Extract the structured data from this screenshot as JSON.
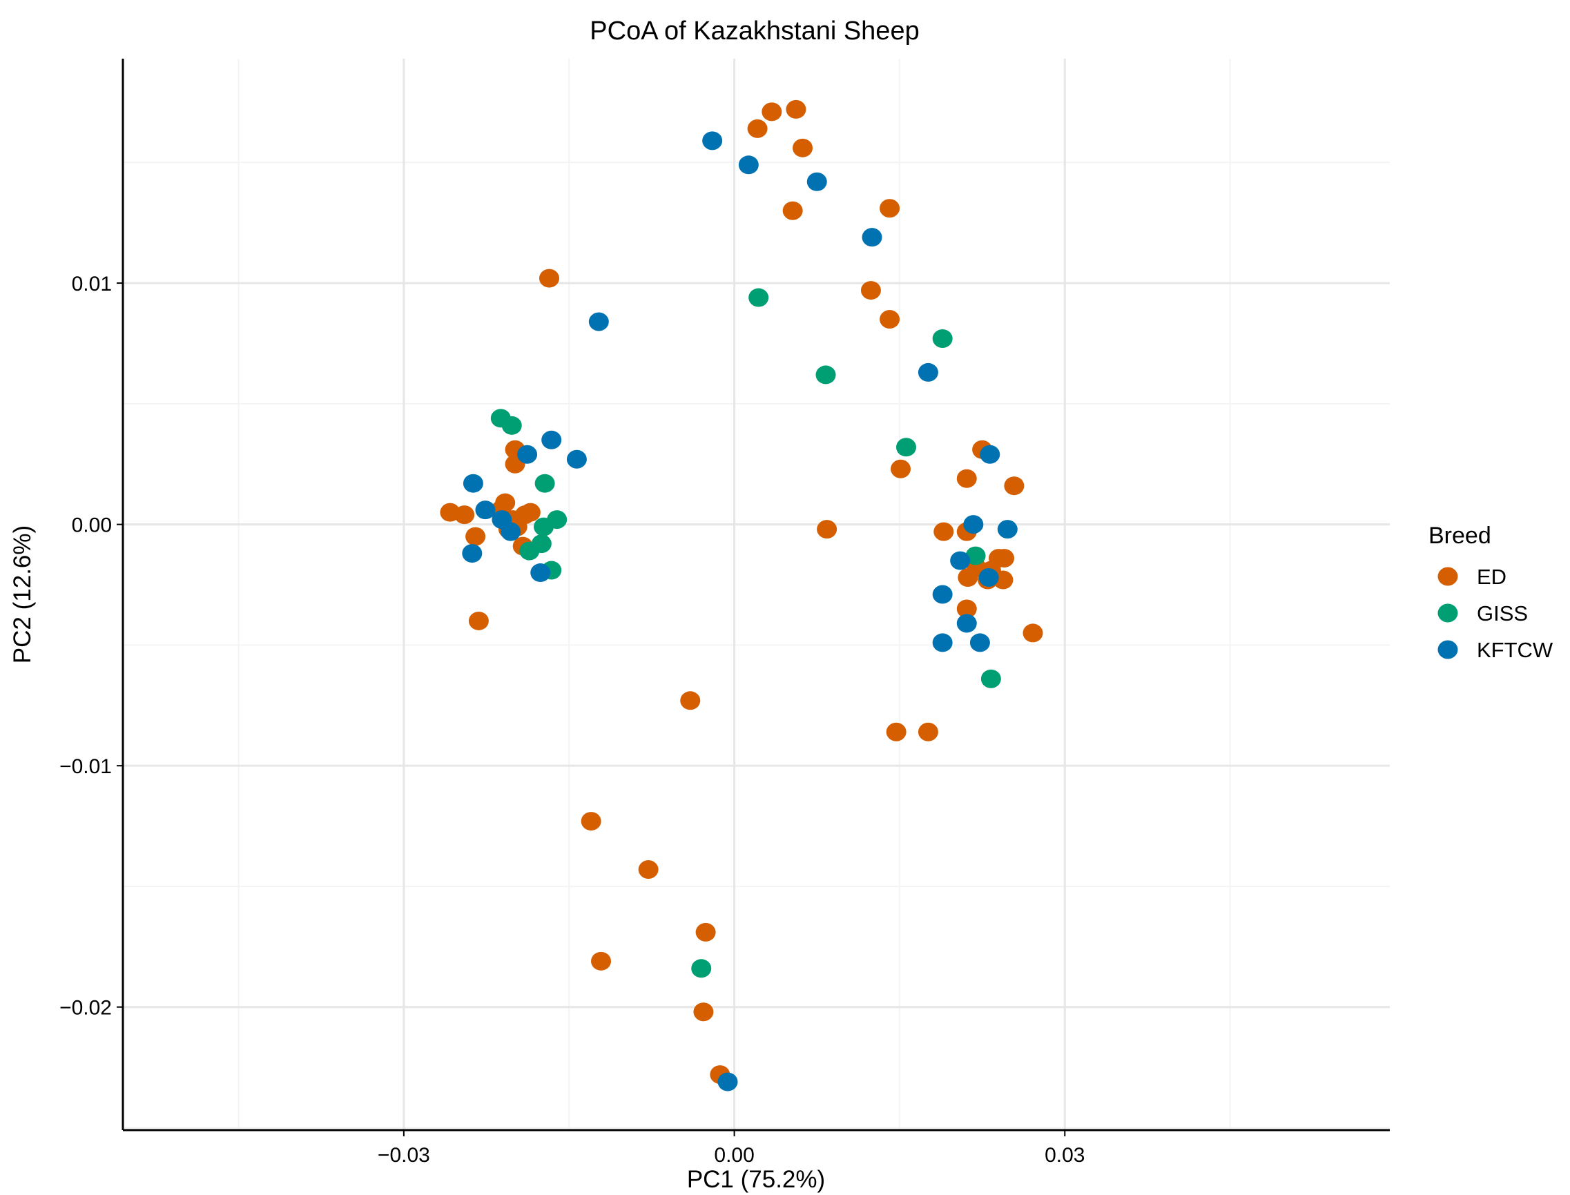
{
  "chart_data": {
    "type": "scatter",
    "title": "PCoA of Kazakhstani Sheep",
    "xlabel": "PC1 (75.2%)",
    "ylabel": "PC2 (12.6%)",
    "xlim": [
      -0.0555,
      0.0595
    ],
    "ylim": [
      -0.0251,
      0.0193
    ],
    "x_ticks": [
      -0.03,
      0.0,
      0.03
    ],
    "x_tick_labels": [
      "−0.03",
      "0.00",
      "0.03"
    ],
    "y_ticks": [
      0.01,
      0.0,
      -0.01,
      -0.02
    ],
    "y_tick_labels": [
      "0.01",
      "0.00",
      "−0.01",
      "−0.02"
    ],
    "grid": true,
    "legend": {
      "title": "Breed",
      "position": "right",
      "entries": [
        "ED",
        "GISS",
        "KFTCW"
      ]
    },
    "series": [
      {
        "name": "ED",
        "color": "#D55E00",
        "points": [
          [
            0.0056,
            0.0172
          ],
          [
            0.0034,
            0.0171
          ],
          [
            0.0021,
            0.0164
          ],
          [
            0.0062,
            0.0156
          ],
          [
            0.0053,
            0.013
          ],
          [
            0.0141,
            0.0131
          ],
          [
            -0.0168,
            0.0102
          ],
          [
            0.0124,
            0.0097
          ],
          [
            0.0141,
            0.0085
          ],
          [
            0.0225,
            0.0031
          ],
          [
            -0.0199,
            0.0031
          ],
          [
            -0.0199,
            0.0025
          ],
          [
            0.0151,
            0.0023
          ],
          [
            0.0211,
            0.0019
          ],
          [
            0.0254,
            0.0016
          ],
          [
            -0.0258,
            0.0005
          ],
          [
            -0.0245,
            0.0004
          ],
          [
            -0.0208,
            0.0009
          ],
          [
            -0.0212,
            0.0006
          ],
          [
            -0.0201,
            0.0002
          ],
          [
            -0.019,
            0.0004
          ],
          [
            -0.0185,
            0.0005
          ],
          [
            -0.0197,
            -0.0001
          ],
          [
            -0.0205,
            -0.0002
          ],
          [
            0.0084,
            -0.0002
          ],
          [
            0.019,
            -0.0003
          ],
          [
            0.0211,
            -0.0003
          ],
          [
            -0.0235,
            -0.0005
          ],
          [
            0.0245,
            -0.0014
          ],
          [
            0.024,
            -0.0014
          ],
          [
            0.022,
            -0.0018
          ],
          [
            0.0233,
            -0.0019
          ],
          [
            0.0212,
            -0.0022
          ],
          [
            0.023,
            -0.0023
          ],
          [
            0.0244,
            -0.0023
          ],
          [
            -0.0192,
            -0.0009
          ],
          [
            0.0211,
            -0.0035
          ],
          [
            -0.0232,
            -0.004
          ],
          [
            0.0271,
            -0.0045
          ],
          [
            -0.004,
            -0.0073
          ],
          [
            0.0147,
            -0.0086
          ],
          [
            0.0176,
            -0.0086
          ],
          [
            -0.013,
            -0.0123
          ],
          [
            -0.0078,
            -0.0143
          ],
          [
            -0.0026,
            -0.0169
          ],
          [
            -0.0121,
            -0.0181
          ],
          [
            -0.0028,
            -0.0202
          ],
          [
            -0.0013,
            -0.0228
          ]
        ]
      },
      {
        "name": "GISS",
        "color": "#009E73",
        "points": [
          [
            0.0022,
            0.0094
          ],
          [
            0.0189,
            0.0077
          ],
          [
            0.0083,
            0.0062
          ],
          [
            -0.0212,
            0.0044
          ],
          [
            -0.0202,
            0.0041
          ],
          [
            0.0156,
            0.0032
          ],
          [
            -0.0172,
            0.0017
          ],
          [
            -0.0161,
            0.0002
          ],
          [
            -0.0173,
            -0.0001
          ],
          [
            -0.0175,
            -0.0008
          ],
          [
            -0.0186,
            -0.0011
          ],
          [
            0.0219,
            -0.0013
          ],
          [
            -0.0166,
            -0.0019
          ],
          [
            0.0233,
            -0.0064
          ],
          [
            -0.003,
            -0.0184
          ]
        ]
      },
      {
        "name": "KFTCW",
        "color": "#0072B2",
        "points": [
          [
            -0.002,
            0.0159
          ],
          [
            0.0013,
            0.0149
          ],
          [
            0.0075,
            0.0142
          ],
          [
            0.0125,
            0.0119
          ],
          [
            -0.0123,
            0.0084
          ],
          [
            0.0176,
            0.0063
          ],
          [
            -0.0166,
            0.0035
          ],
          [
            -0.0143,
            0.0027
          ],
          [
            -0.0188,
            0.0029
          ],
          [
            0.0232,
            0.0029
          ],
          [
            -0.0237,
            0.0017
          ],
          [
            -0.0226,
            0.0006
          ],
          [
            -0.0211,
            0.0002
          ],
          [
            -0.0203,
            -0.0003
          ],
          [
            0.0217,
            0.0
          ],
          [
            0.0248,
            -0.0002
          ],
          [
            -0.0238,
            -0.0012
          ],
          [
            0.0205,
            -0.0015
          ],
          [
            0.0231,
            -0.0022
          ],
          [
            -0.0176,
            -0.002
          ],
          [
            0.0189,
            -0.0029
          ],
          [
            0.0211,
            -0.0041
          ],
          [
            0.0189,
            -0.0049
          ],
          [
            0.0223,
            -0.0049
          ],
          [
            -0.0006,
            -0.0231
          ]
        ]
      }
    ]
  }
}
